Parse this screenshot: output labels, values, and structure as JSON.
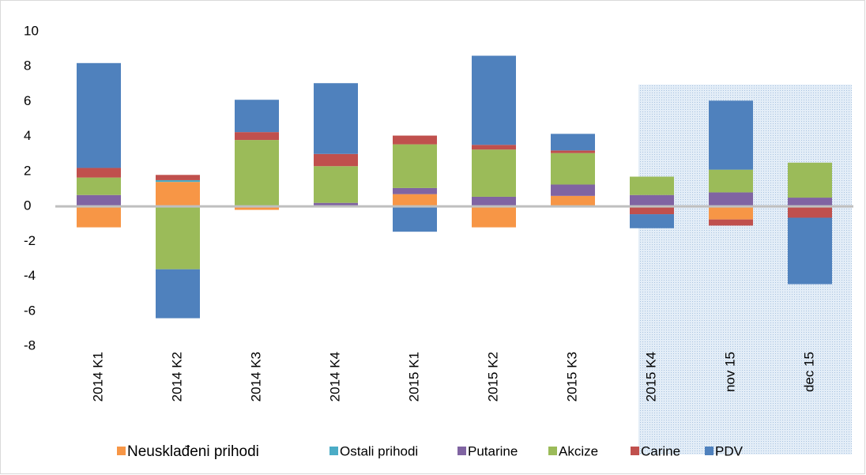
{
  "chart_data": {
    "type": "bar",
    "stacked": true,
    "categories": [
      "2014 K1",
      "2014 K2",
      "2014 K3",
      "2014 K4",
      "2015 K1",
      "2015 K2",
      "2015 K3",
      "2015 K4",
      "nov 15",
      "dec 15"
    ],
    "series": [
      {
        "name": "Neusklađeni prihodi",
        "color": "#f79646",
        "values": [
          -1.2,
          1.4,
          -0.2,
          0,
          0.7,
          -1.2,
          0.6,
          0,
          -0.75,
          0
        ]
      },
      {
        "name": "Ostali prihodi",
        "color": "#4bacc6",
        "values": [
          0,
          0.1,
          0,
          0,
          0,
          0,
          0,
          0,
          0,
          0
        ]
      },
      {
        "name": "Putarine",
        "color": "#8064a2",
        "values": [
          0.65,
          0,
          0.05,
          0.2,
          0.35,
          0.55,
          0.65,
          0.65,
          0.8,
          0.5
        ]
      },
      {
        "name": "Akcize",
        "color": "#9bbb59",
        "values": [
          1.0,
          -3.6,
          3.75,
          2.1,
          2.5,
          2.7,
          1.8,
          1.05,
          1.3,
          2.0
        ]
      },
      {
        "name": "Carine",
        "color": "#c0504d",
        "values": [
          0.55,
          0.3,
          0.45,
          0.7,
          0.5,
          0.27,
          0.15,
          -0.45,
          -0.35,
          -0.65
        ]
      },
      {
        "name": "PDV",
        "color": "#4f81bd",
        "values": [
          6.0,
          -2.8,
          1.85,
          4.05,
          -1.45,
          5.1,
          0.95,
          -0.8,
          3.95,
          -3.8
        ]
      }
    ],
    "ylim": [
      -8,
      10
    ],
    "yticks": [
      -8,
      -6,
      -4,
      -2,
      0,
      2,
      4,
      6,
      8,
      10
    ],
    "grid": false,
    "legend": "bottom"
  }
}
